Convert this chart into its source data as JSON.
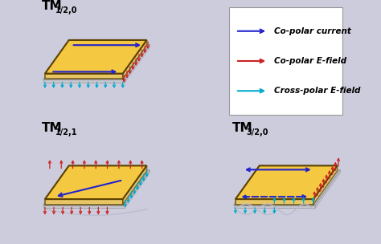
{
  "bg_color": "#ccccdd",
  "patch_fill": "#f5c842",
  "patch_edge": "#5a4000",
  "ground_fill": "#c0c0c0",
  "ground_edge": "#888888",
  "blue": "#2222cc",
  "red": "#cc2222",
  "cyan": "#00aacc",
  "legend_items": [
    {
      "label": "Co-polar current",
      "color": "#2222cc"
    },
    {
      "label": "Co-polar E-field",
      "color": "#cc2222"
    },
    {
      "label": "Cross-polar E-field",
      "color": "#00aacc"
    }
  ],
  "panel_edge": "#aaaaaa"
}
